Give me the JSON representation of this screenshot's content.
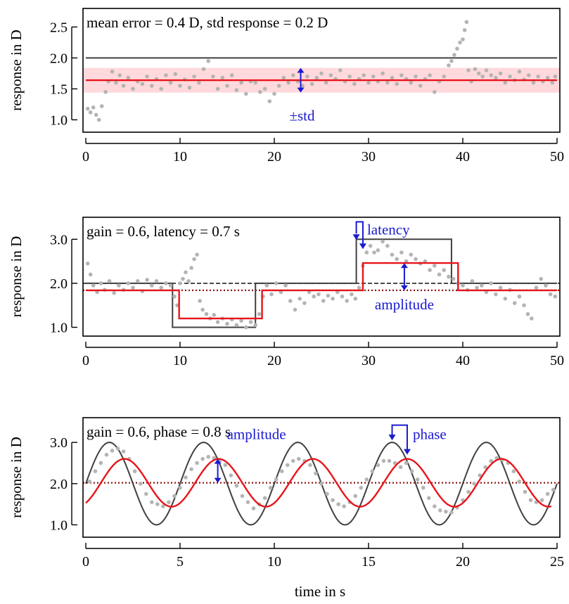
{
  "colors": {
    "stimulus": "#404040",
    "response": "#b4b4b4",
    "fit": "#e8141a",
    "std_band": "#ffd9dc",
    "dotted_mean": "#8c1414",
    "dashed_base": "#222222",
    "annotation": "#1a1ad0"
  },
  "shared": {
    "ylabel": "response in D",
    "xlabel": "time in s"
  },
  "chart_data": [
    {
      "id": "constant",
      "type": "scatter",
      "annotation": "mean error = 0.4 D, std response = 0.2 D",
      "labels": {
        "std": "±std"
      },
      "xlim": [
        0,
        50
      ],
      "ylim": [
        0.8,
        2.8
      ],
      "xticks": [
        0,
        10,
        20,
        30,
        40,
        50
      ],
      "yticks": [
        1.0,
        1.5,
        2.0,
        2.5
      ],
      "ytick_labels": [
        "1.0",
        "1.5",
        "2.0",
        "2.5"
      ],
      "stimulus": {
        "x": [
          0,
          50
        ],
        "y": [
          2.0,
          2.0
        ]
      },
      "fit": {
        "x": [
          0,
          50
        ],
        "y": [
          1.64,
          1.64
        ]
      },
      "std_band": [
        1.44,
        1.84
      ],
      "std_arrow": {
        "x": 22.8,
        "y": [
          1.44,
          1.84
        ]
      },
      "response_points": [
        [
          0.2,
          1.18
        ],
        [
          0.5,
          1.12
        ],
        [
          0.8,
          1.2
        ],
        [
          1.1,
          1.08
        ],
        [
          1.4,
          1.0
        ],
        [
          1.7,
          1.22
        ],
        [
          2.1,
          1.45
        ],
        [
          2.4,
          1.62
        ],
        [
          2.8,
          1.78
        ],
        [
          3.2,
          1.6
        ],
        [
          3.6,
          1.72
        ],
        [
          4.0,
          1.55
        ],
        [
          4.5,
          1.68
        ],
        [
          5.0,
          1.5
        ],
        [
          5.5,
          1.62
        ],
        [
          6.0,
          1.58
        ],
        [
          6.5,
          1.7
        ],
        [
          7.0,
          1.55
        ],
        [
          7.5,
          1.66
        ],
        [
          8.0,
          1.5
        ],
        [
          8.5,
          1.72
        ],
        [
          9.0,
          1.6
        ],
        [
          9.5,
          1.74
        ],
        [
          10.0,
          1.55
        ],
        [
          10.5,
          1.65
        ],
        [
          11.0,
          1.52
        ],
        [
          11.5,
          1.7
        ],
        [
          12.0,
          1.6
        ],
        [
          12.5,
          1.82
        ],
        [
          13.0,
          1.95
        ],
        [
          13.5,
          1.7
        ],
        [
          14.0,
          1.5
        ],
        [
          14.5,
          1.68
        ],
        [
          15.0,
          1.55
        ],
        [
          15.5,
          1.72
        ],
        [
          16.0,
          1.48
        ],
        [
          16.5,
          1.6
        ],
        [
          17.0,
          1.42
        ],
        [
          17.5,
          1.62
        ],
        [
          18.0,
          1.6
        ],
        [
          18.5,
          1.45
        ],
        [
          19.0,
          1.5
        ],
        [
          19.5,
          1.3
        ],
        [
          20.0,
          1.42
        ],
        [
          20.5,
          1.55
        ],
        [
          21.0,
          1.68
        ],
        [
          21.5,
          1.6
        ],
        [
          22.0,
          1.72
        ],
        [
          22.5,
          1.62
        ],
        [
          23.0,
          1.55
        ],
        [
          23.5,
          1.7
        ],
        [
          24.0,
          1.58
        ],
        [
          24.5,
          1.68
        ],
        [
          25.0,
          1.75
        ],
        [
          25.5,
          1.6
        ],
        [
          26.0,
          1.72
        ],
        [
          26.5,
          1.66
        ],
        [
          27.0,
          1.8
        ],
        [
          27.5,
          1.62
        ],
        [
          28.0,
          1.7
        ],
        [
          28.5,
          1.58
        ],
        [
          29.0,
          1.66
        ],
        [
          29.5,
          1.72
        ],
        [
          30.0,
          1.6
        ],
        [
          30.5,
          1.7
        ],
        [
          31.0,
          1.62
        ],
        [
          31.5,
          1.75
        ],
        [
          32.0,
          1.6
        ],
        [
          32.5,
          1.68
        ],
        [
          33.0,
          1.58
        ],
        [
          33.5,
          1.72
        ],
        [
          34.0,
          1.66
        ],
        [
          34.5,
          1.6
        ],
        [
          35.0,
          1.7
        ],
        [
          35.5,
          1.55
        ],
        [
          36.0,
          1.66
        ],
        [
          36.5,
          1.72
        ],
        [
          37.0,
          1.45
        ],
        [
          37.5,
          1.62
        ],
        [
          38.0,
          1.7
        ],
        [
          38.5,
          1.88
        ],
        [
          38.8,
          1.95
        ],
        [
          39.1,
          2.05
        ],
        [
          39.4,
          2.15
        ],
        [
          39.7,
          2.25
        ],
        [
          40.0,
          2.3
        ],
        [
          40.2,
          2.45
        ],
        [
          40.4,
          2.58
        ],
        [
          40.6,
          1.8
        ],
        [
          40.9,
          1.62
        ],
        [
          41.3,
          1.82
        ],
        [
          41.7,
          1.75
        ],
        [
          42.1,
          1.7
        ],
        [
          42.5,
          1.8
        ],
        [
          43.0,
          1.72
        ],
        [
          43.5,
          1.68
        ],
        [
          44.0,
          1.75
        ],
        [
          44.5,
          1.6
        ],
        [
          45.0,
          1.7
        ],
        [
          45.5,
          1.64
        ],
        [
          46.0,
          1.78
        ],
        [
          46.5,
          1.65
        ],
        [
          47.0,
          1.72
        ],
        [
          47.5,
          1.6
        ],
        [
          48.0,
          1.7
        ],
        [
          48.5,
          1.62
        ],
        [
          49.0,
          1.68
        ],
        [
          49.5,
          1.6
        ],
        [
          49.8,
          1.7
        ]
      ]
    },
    {
      "id": "step",
      "type": "line",
      "annotation": "gain = 0.6, latency = 0.7 s",
      "labels": {
        "latency": "latency",
        "amplitude": "amplitude"
      },
      "xlim": [
        0,
        50
      ],
      "ylim": [
        0.8,
        3.5
      ],
      "xticks": [
        0,
        10,
        20,
        30,
        40,
        50
      ],
      "yticks": [
        1.0,
        2.0,
        3.0
      ],
      "ytick_labels": [
        "1.0",
        "2.0",
        "3.0"
      ],
      "baseline": 2.0,
      "dotted_mean": 1.84,
      "stimulus": {
        "x": [
          0,
          9.2,
          9.2,
          18.0,
          18.0,
          28.7,
          28.7,
          38.8,
          38.8,
          50
        ],
        "y": [
          2.0,
          2.0,
          1.0,
          1.0,
          2.0,
          2.0,
          3.0,
          3.0,
          2.0,
          2.0
        ]
      },
      "fit": {
        "x": [
          0,
          9.9,
          9.9,
          18.7,
          18.7,
          29.4,
          29.4,
          39.5,
          39.5,
          50
        ],
        "y": [
          1.84,
          1.84,
          1.2,
          1.2,
          1.84,
          1.84,
          2.46,
          2.46,
          1.84,
          1.84
        ]
      },
      "latency_marker": {
        "x": [
          28.7,
          29.4
        ],
        "y_top": 3.3,
        "y_bottom": 3.0
      },
      "amplitude_arrow": {
        "x": 33.8,
        "y": [
          1.84,
          2.46
        ]
      },
      "response_points": [
        [
          0.2,
          2.45
        ],
        [
          0.5,
          2.2
        ],
        [
          0.8,
          1.95
        ],
        [
          1.2,
          1.8
        ],
        [
          1.6,
          2.0
        ],
        [
          2.0,
          1.85
        ],
        [
          2.5,
          2.05
        ],
        [
          3.0,
          1.78
        ],
        [
          3.5,
          1.95
        ],
        [
          4.0,
          1.85
        ],
        [
          4.5,
          2.0
        ],
        [
          5.0,
          1.9
        ],
        [
          5.5,
          2.05
        ],
        [
          6.0,
          1.82
        ],
        [
          6.5,
          2.08
        ],
        [
          7.0,
          1.95
        ],
        [
          7.5,
          2.05
        ],
        [
          8.0,
          1.9
        ],
        [
          8.5,
          2.0
        ],
        [
          9.0,
          1.95
        ],
        [
          9.4,
          1.7
        ],
        [
          9.7,
          1.5
        ],
        [
          10.0,
          2.0
        ],
        [
          10.3,
          2.1
        ],
        [
          10.6,
          2.25
        ],
        [
          10.9,
          2.05
        ],
        [
          11.2,
          2.35
        ],
        [
          11.5,
          2.55
        ],
        [
          11.8,
          2.65
        ],
        [
          12.1,
          1.6
        ],
        [
          12.4,
          1.4
        ],
        [
          12.8,
          1.3
        ],
        [
          13.2,
          1.2
        ],
        [
          13.6,
          1.28
        ],
        [
          14.0,
          1.12
        ],
        [
          14.5,
          1.2
        ],
        [
          15.0,
          1.08
        ],
        [
          15.5,
          1.18
        ],
        [
          16.0,
          1.05
        ],
        [
          16.5,
          1.15
        ],
        [
          17.0,
          1.0
        ],
        [
          17.5,
          1.12
        ],
        [
          18.0,
          1.05
        ],
        [
          18.4,
          1.3
        ],
        [
          18.8,
          1.7
        ],
        [
          19.2,
          1.95
        ],
        [
          19.7,
          1.75
        ],
        [
          20.2,
          2.0
        ],
        [
          20.7,
          1.8
        ],
        [
          21.2,
          1.95
        ],
        [
          21.7,
          1.6
        ],
        [
          22.2,
          1.4
        ],
        [
          22.7,
          1.65
        ],
        [
          23.2,
          1.55
        ],
        [
          23.7,
          1.8
        ],
        [
          24.2,
          1.7
        ],
        [
          24.7,
          1.75
        ],
        [
          25.2,
          1.6
        ],
        [
          25.7,
          1.72
        ],
        [
          26.2,
          1.65
        ],
        [
          26.7,
          1.8
        ],
        [
          27.2,
          1.7
        ],
        [
          27.7,
          1.6
        ],
        [
          28.2,
          1.75
        ],
        [
          28.6,
          1.65
        ],
        [
          29.0,
          1.9
        ],
        [
          29.4,
          2.4
        ],
        [
          29.8,
          2.7
        ],
        [
          30.2,
          2.85
        ],
        [
          30.6,
          2.7
        ],
        [
          31.0,
          2.75
        ],
        [
          31.5,
          2.95
        ],
        [
          32.0,
          2.85
        ],
        [
          32.5,
          2.65
        ],
        [
          33.0,
          2.55
        ],
        [
          33.5,
          2.7
        ],
        [
          34.0,
          2.5
        ],
        [
          34.5,
          2.65
        ],
        [
          35.0,
          2.55
        ],
        [
          35.5,
          2.45
        ],
        [
          36.0,
          2.5
        ],
        [
          36.5,
          2.3
        ],
        [
          37.0,
          2.4
        ],
        [
          37.5,
          2.2
        ],
        [
          38.0,
          2.3
        ],
        [
          38.5,
          2.15
        ],
        [
          39.0,
          2.1
        ],
        [
          39.5,
          2.0
        ],
        [
          40.0,
          1.95
        ],
        [
          40.5,
          1.85
        ],
        [
          41.0,
          2.05
        ],
        [
          41.5,
          1.9
        ],
        [
          42.0,
          1.95
        ],
        [
          42.5,
          1.8
        ],
        [
          43.0,
          2.0
        ],
        [
          43.5,
          1.75
        ],
        [
          44.0,
          1.9
        ],
        [
          44.5,
          1.65
        ],
        [
          45.0,
          1.85
        ],
        [
          45.5,
          1.55
        ],
        [
          46.0,
          1.7
        ],
        [
          46.5,
          1.5
        ],
        [
          46.9,
          1.3
        ],
        [
          47.3,
          1.2
        ],
        [
          47.8,
          1.9
        ],
        [
          48.3,
          2.1
        ],
        [
          48.8,
          1.95
        ],
        [
          49.3,
          1.75
        ],
        [
          49.8,
          1.7
        ]
      ]
    },
    {
      "id": "sine",
      "type": "line",
      "annotation": "gain = 0.6, phase = 0.8 s",
      "labels": {
        "amplitude": "amplitude",
        "phase": "phase"
      },
      "xlim": [
        0,
        25
      ],
      "ylim": [
        0.7,
        3.6
      ],
      "xticks": [
        0,
        5,
        10,
        15,
        20,
        25
      ],
      "yticks": [
        1.0,
        2.0,
        3.0
      ],
      "ytick_labels": [
        "1.0",
        "2.0",
        "3.0"
      ],
      "stimulus_sine": {
        "offset": 2.0,
        "amplitude": 1.0,
        "period": 5.0,
        "phase": 0.0
      },
      "fit_sine": {
        "offset": 2.02,
        "amplitude": 0.58,
        "period": 5.0,
        "phase": 0.8,
        "x_start": 0.0,
        "x_end": 24.7
      },
      "dotted_mean": 2.02,
      "amplitude_arrow": {
        "x": 7.0,
        "y": [
          2.02,
          2.6
        ]
      },
      "phase_marker": {
        "x": [
          16.25,
          17.05
        ],
        "y_top": 3.35,
        "y_bottom": 2.95,
        "y_bottom_fit": 2.6
      },
      "response_points": [
        [
          0.2,
          2.05
        ],
        [
          0.5,
          2.3
        ],
        [
          0.8,
          2.5
        ],
        [
          1.1,
          2.7
        ],
        [
          1.4,
          2.8
        ],
        [
          1.7,
          2.85
        ],
        [
          2.0,
          2.78
        ],
        [
          2.3,
          2.6
        ],
        [
          2.6,
          2.3
        ],
        [
          2.9,
          2.0
        ],
        [
          3.2,
          1.75
        ],
        [
          3.5,
          1.55
        ],
        [
          3.8,
          1.5
        ],
        [
          4.1,
          1.45
        ],
        [
          4.4,
          1.55
        ],
        [
          4.7,
          1.7
        ],
        [
          5.0,
          1.9
        ],
        [
          5.3,
          2.15
        ],
        [
          5.6,
          2.35
        ],
        [
          5.9,
          2.5
        ],
        [
          6.2,
          2.6
        ],
        [
          6.5,
          2.65
        ],
        [
          6.8,
          2.62
        ],
        [
          7.1,
          2.55
        ],
        [
          7.4,
          2.45
        ],
        [
          7.7,
          2.2
        ],
        [
          8.0,
          1.95
        ],
        [
          8.3,
          1.7
        ],
        [
          8.6,
          1.55
        ],
        [
          8.9,
          1.4
        ],
        [
          9.2,
          1.5
        ],
        [
          9.5,
          1.65
        ],
        [
          9.8,
          1.9
        ],
        [
          10.1,
          2.1
        ],
        [
          10.4,
          2.3
        ],
        [
          10.7,
          2.45
        ],
        [
          11.0,
          2.55
        ],
        [
          11.3,
          2.6
        ],
        [
          11.6,
          2.55
        ],
        [
          11.9,
          2.45
        ],
        [
          12.2,
          2.25
        ],
        [
          12.5,
          2.0
        ],
        [
          12.8,
          1.75
        ],
        [
          13.1,
          1.6
        ],
        [
          13.4,
          1.5
        ],
        [
          13.7,
          1.45
        ],
        [
          14.0,
          1.55
        ],
        [
          14.3,
          1.7
        ],
        [
          14.6,
          1.9
        ],
        [
          14.9,
          2.1
        ],
        [
          15.2,
          2.3
        ],
        [
          15.5,
          2.45
        ],
        [
          15.8,
          2.55
        ],
        [
          16.1,
          2.55
        ],
        [
          16.4,
          2.5
        ],
        [
          16.7,
          2.4
        ],
        [
          17.0,
          2.5
        ],
        [
          17.3,
          2.3
        ],
        [
          17.6,
          2.1
        ],
        [
          17.9,
          1.9
        ],
        [
          18.2,
          1.65
        ],
        [
          18.5,
          1.45
        ],
        [
          18.8,
          1.35
        ],
        [
          19.1,
          1.32
        ],
        [
          19.4,
          1.3
        ],
        [
          19.7,
          1.42
        ],
        [
          20.0,
          1.6
        ],
        [
          20.3,
          1.8
        ],
        [
          20.6,
          2.0
        ],
        [
          20.9,
          2.2
        ],
        [
          21.2,
          2.4
        ],
        [
          21.5,
          2.55
        ],
        [
          21.8,
          2.62
        ],
        [
          22.1,
          2.58
        ],
        [
          22.4,
          2.5
        ],
        [
          22.7,
          2.3
        ],
        [
          23.0,
          2.05
        ],
        [
          23.3,
          1.8
        ],
        [
          23.6,
          1.6
        ],
        [
          23.9,
          1.55
        ],
        [
          24.2,
          1.6
        ],
        [
          24.5,
          1.75
        ],
        [
          24.8,
          1.85
        ]
      ]
    }
  ]
}
